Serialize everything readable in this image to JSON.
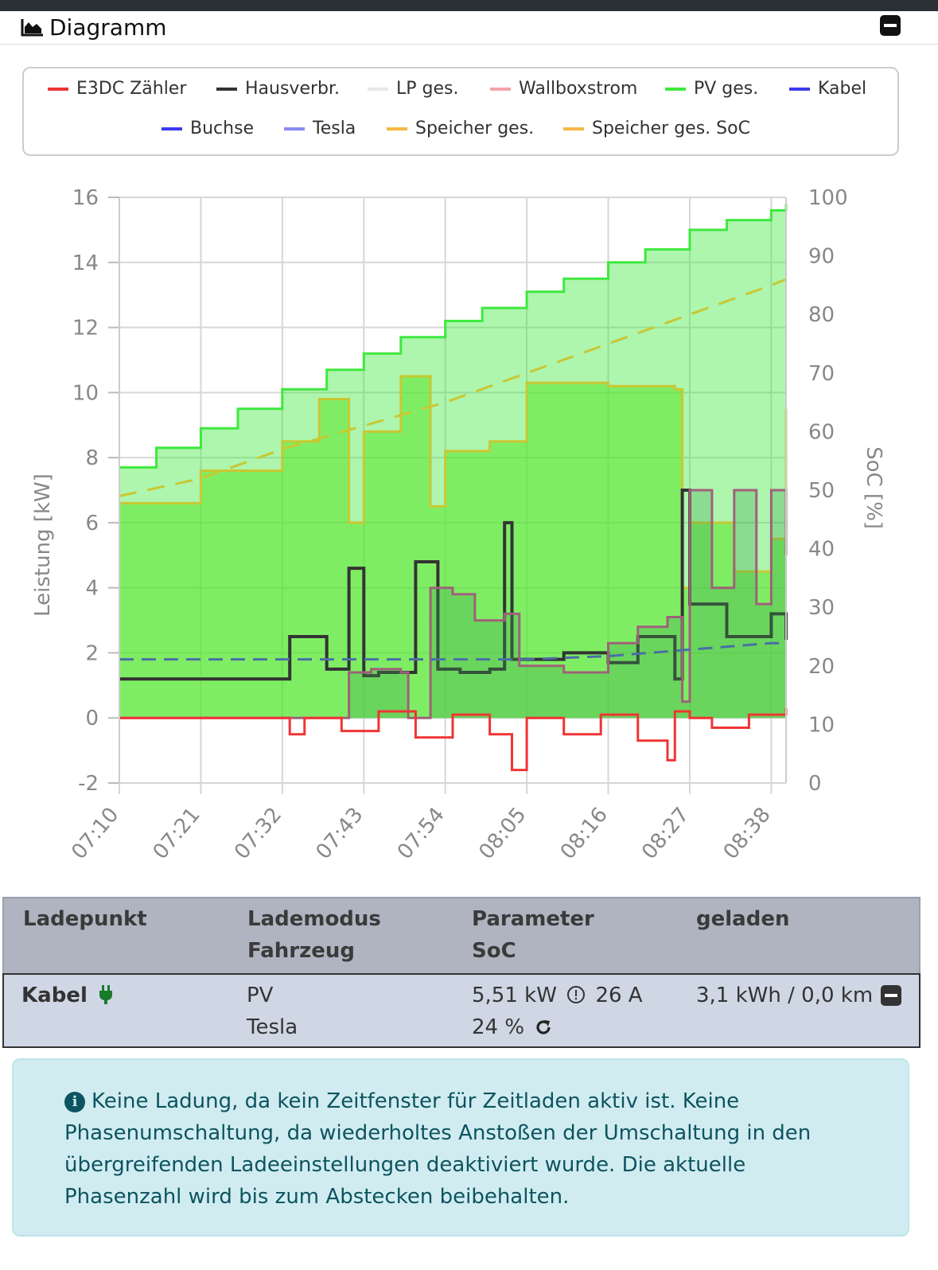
{
  "card": {
    "title": "Diagramm",
    "title_icon": "area-chart-icon",
    "collapse_icon": "minus-square-icon"
  },
  "legend": [
    {
      "label": "E3DC Zähler",
      "color": "#f03434"
    },
    {
      "label": "Hausverbr.",
      "color": "#333333"
    },
    {
      "label": "LP ges.",
      "color": "#e8e8e8"
    },
    {
      "label": "Wallboxstrom",
      "color": "#f2a3ad"
    },
    {
      "label": "PV ges.",
      "color": "#3ee83e"
    },
    {
      "label": "Kabel",
      "color": "#3b3bf0"
    },
    {
      "label": "Buchse",
      "color": "#3b3bf0"
    },
    {
      "label": "Tesla",
      "color": "#8a8af5"
    },
    {
      "label": "Speicher ges.",
      "color": "#f5b845"
    },
    {
      "label": "Speicher ges. SoC",
      "color": "#f5b845"
    }
  ],
  "chart_data": {
    "type": "area",
    "ylabel": "Leistung [kW]",
    "y2label": "SoC [%]",
    "ylim": [
      -2,
      16
    ],
    "y2lim": [
      0,
      100
    ],
    "yticks": [
      "16",
      "14",
      "12",
      "10",
      "8",
      "6",
      "4",
      "2",
      "0",
      "-2"
    ],
    "y2ticks": [
      "100",
      "90",
      "80",
      "70",
      "60",
      "50",
      "40",
      "30",
      "20",
      "10",
      "0"
    ],
    "xticks": [
      "07:10",
      "07:21",
      "07:32",
      "07:43",
      "07:54",
      "08:05",
      "08:16",
      "08:27",
      "08:38"
    ],
    "grid": true,
    "series": [
      {
        "name": "PV ges.",
        "axis": "left",
        "color": "#3ee83e",
        "x": [
          "07:10",
          "07:15",
          "07:21",
          "07:26",
          "07:32",
          "07:38",
          "07:43",
          "07:48",
          "07:54",
          "07:59",
          "08:05",
          "08:10",
          "08:16",
          "08:21",
          "08:27",
          "08:32",
          "08:38",
          "08:40"
        ],
        "values": [
          7.7,
          8.3,
          8.9,
          9.5,
          10.1,
          10.7,
          11.2,
          11.7,
          12.2,
          12.6,
          13.1,
          13.5,
          14.0,
          14.4,
          15.0,
          15.3,
          15.6,
          15.8
        ]
      },
      {
        "name": "Speicher ges.",
        "axis": "left",
        "color": "#c8c832",
        "x": [
          "07:10",
          "07:21",
          "07:32",
          "07:37",
          "07:41",
          "07:43",
          "07:48",
          "07:52",
          "07:54",
          "08:00",
          "08:05",
          "08:16",
          "08:25",
          "08:26",
          "08:27",
          "08:33",
          "08:38",
          "08:40"
        ],
        "values": [
          6.6,
          7.6,
          8.5,
          9.8,
          6.0,
          8.8,
          10.5,
          6.5,
          8.2,
          8.5,
          10.3,
          10.2,
          10.1,
          4.0,
          6.0,
          4.5,
          5.5,
          9.5
        ]
      },
      {
        "name": "Speicher ges. SoC",
        "axis": "right",
        "color": "#c8c832",
        "x": [
          "07:10",
          "07:21",
          "07:32",
          "07:43",
          "07:54",
          "08:05",
          "08:16",
          "08:27",
          "08:38",
          "08:40"
        ],
        "values": [
          49,
          52,
          57,
          61,
          65,
          70,
          75,
          80,
          85,
          86
        ]
      },
      {
        "name": "Hausverbr.",
        "axis": "left",
        "color": "#333333",
        "x": [
          "07:10",
          "07:21",
          "07:32",
          "07:33",
          "07:38",
          "07:41",
          "07:43",
          "07:45",
          "07:50",
          "07:53",
          "07:56",
          "08:00",
          "08:02",
          "08:03",
          "08:05",
          "08:10",
          "08:16",
          "08:20",
          "08:25",
          "08:26",
          "08:27",
          "08:32",
          "08:38",
          "08:40"
        ],
        "values": [
          1.2,
          1.2,
          1.2,
          2.5,
          1.5,
          4.6,
          1.3,
          1.4,
          4.8,
          1.5,
          1.4,
          1.5,
          6.0,
          1.8,
          1.8,
          2.0,
          1.7,
          2.5,
          1.2,
          7.0,
          3.5,
          2.5,
          3.2,
          2.4
        ]
      },
      {
        "name": "Wallboxstrom",
        "axis": "left",
        "color": "#a0607a",
        "x": [
          "07:10",
          "07:40",
          "07:41",
          "07:44",
          "07:48",
          "07:49",
          "07:52",
          "07:55",
          "07:58",
          "08:02",
          "08:04",
          "08:10",
          "08:16",
          "08:20",
          "08:24",
          "08:26",
          "08:27",
          "08:30",
          "08:33",
          "08:36",
          "08:38",
          "08:40"
        ],
        "values": [
          0,
          0,
          1.4,
          1.5,
          1.4,
          0,
          4.0,
          3.8,
          3.0,
          3.2,
          1.6,
          1.4,
          2.3,
          2.8,
          3.1,
          0.5,
          7.0,
          4.0,
          7.0,
          3.5,
          7.0,
          5.0
        ]
      },
      {
        "name": "Kabel",
        "axis": "left",
        "color": "#4a6fa5",
        "dash": true,
        "x": [
          "07:10",
          "07:32",
          "07:54",
          "08:05",
          "08:16",
          "08:27",
          "08:38",
          "08:40"
        ],
        "values": [
          1.8,
          1.8,
          1.8,
          1.8,
          1.9,
          2.1,
          2.3,
          2.3
        ]
      },
      {
        "name": "E3DC Zähler",
        "axis": "left",
        "color": "#f03434",
        "x": [
          "07:10",
          "07:32",
          "07:33",
          "07:35",
          "07:40",
          "07:45",
          "07:50",
          "07:55",
          "08:00",
          "08:03",
          "08:05",
          "08:10",
          "08:15",
          "08:20",
          "08:24",
          "08:25",
          "08:27",
          "08:30",
          "08:35",
          "08:40"
        ],
        "values": [
          0,
          0,
          -0.5,
          0.0,
          -0.4,
          0.2,
          -0.6,
          0.1,
          -0.5,
          -1.6,
          0.0,
          -0.5,
          0.1,
          -0.7,
          -1.3,
          0.2,
          0.0,
          -0.3,
          0.1,
          0.3
        ]
      }
    ]
  },
  "ladepunkt_table": {
    "headers": {
      "col1": "Ladepunkt",
      "col2_line1": "Lademodus",
      "col2_line2": "Fahrzeug",
      "col3_line1": "Parameter",
      "col3_line2": "SoC",
      "col4": "geladen"
    },
    "row": {
      "name": "Kabel",
      "plug_icon": "plug-icon",
      "mode": "PV",
      "vehicle": "Tesla",
      "power": "5,51 kW",
      "current": "26 A",
      "soc": "24 %",
      "charged": "3,1 kWh / 0,0 km"
    }
  },
  "info": {
    "icon": "info-circle-icon",
    "text": "Keine Ladung, da kein Zeitfenster für Zeitladen aktiv ist. Keine Phasenumschaltung, da wiederholtes Anstoßen der Umschaltung in den übergreifenden Ladeeinstellungen deaktiviert wurde. Die aktuelle Phasenzahl wird bis zum Abstecken beibehalten."
  }
}
